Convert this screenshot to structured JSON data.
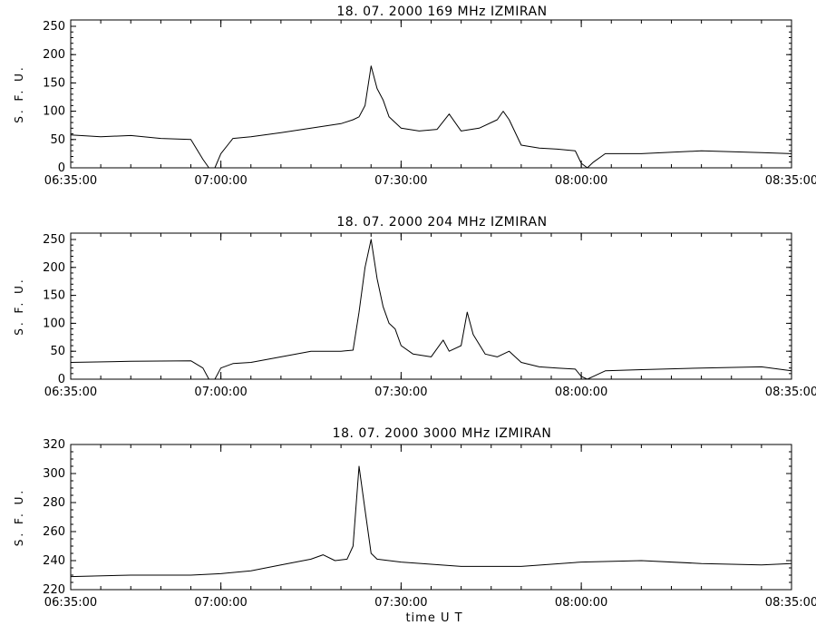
{
  "xlabel": "time  U T",
  "chart_data": [
    {
      "type": "line",
      "title": "18.  07.  2000    169  MHz    IZMIRAN",
      "ylabel": "S. F. U.",
      "xlim": [
        "06:35:00",
        "08:35:00"
      ],
      "ylim": [
        0,
        250
      ],
      "x_ticks": [
        "06:35:00",
        "07:00:00",
        "07:30:00",
        "08:00:00",
        "08:35:00"
      ],
      "y_ticks": [
        0,
        50,
        100,
        150,
        200,
        250
      ],
      "series": [
        {
          "points": [
            [
              "06:35:00",
              58
            ],
            [
              "06:40:00",
              55
            ],
            [
              "06:45:00",
              57
            ],
            [
              "06:50:00",
              52
            ],
            [
              "06:55:00",
              50
            ],
            [
              "06:57:00",
              15
            ],
            [
              "06:58:00",
              0
            ],
            [
              "06:59:00",
              0
            ],
            [
              "07:00:00",
              25
            ],
            [
              "07:02:00",
              52
            ],
            [
              "07:05:00",
              55
            ],
            [
              "07:10:00",
              62
            ],
            [
              "07:15:00",
              70
            ],
            [
              "07:20:00",
              78
            ],
            [
              "07:22:00",
              85
            ],
            [
              "07:23:00",
              90
            ],
            [
              "07:24:00",
              110
            ],
            [
              "07:25:00",
              180
            ],
            [
              "07:26:00",
              140
            ],
            [
              "07:27:00",
              120
            ],
            [
              "07:28:00",
              90
            ],
            [
              "07:30:00",
              70
            ],
            [
              "07:33:00",
              65
            ],
            [
              "07:36:00",
              68
            ],
            [
              "07:38:00",
              95
            ],
            [
              "07:40:00",
              65
            ],
            [
              "07:43:00",
              70
            ],
            [
              "07:46:00",
              85
            ],
            [
              "07:47:00",
              100
            ],
            [
              "07:48:00",
              85
            ],
            [
              "07:50:00",
              40
            ],
            [
              "07:53:00",
              35
            ],
            [
              "07:56:00",
              33
            ],
            [
              "07:59:00",
              30
            ],
            [
              "08:00:00",
              8
            ],
            [
              "08:01:00",
              0
            ],
            [
              "08:02:00",
              10
            ],
            [
              "08:04:00",
              25
            ],
            [
              "08:10:00",
              25
            ],
            [
              "08:20:00",
              30
            ],
            [
              "08:30:00",
              27
            ],
            [
              "08:35:00",
              25
            ]
          ]
        }
      ]
    },
    {
      "type": "line",
      "title": "18.  07.  2000    204  MHz    IZMIRAN",
      "ylabel": "S. F. U.",
      "xlim": [
        "06:35:00",
        "08:35:00"
      ],
      "ylim": [
        0,
        250
      ],
      "x_ticks": [
        "06:35:00",
        "07:00:00",
        "07:30:00",
        "08:00:00",
        "08:35:00"
      ],
      "y_ticks": [
        0,
        50,
        100,
        150,
        200,
        250
      ],
      "series": [
        {
          "points": [
            [
              "06:35:00",
              30
            ],
            [
              "06:45:00",
              32
            ],
            [
              "06:55:00",
              33
            ],
            [
              "06:57:00",
              20
            ],
            [
              "06:58:00",
              0
            ],
            [
              "06:59:00",
              0
            ],
            [
              "07:00:00",
              20
            ],
            [
              "07:02:00",
              28
            ],
            [
              "07:05:00",
              30
            ],
            [
              "07:10:00",
              40
            ],
            [
              "07:15:00",
              50
            ],
            [
              "07:20:00",
              50
            ],
            [
              "07:22:00",
              52
            ],
            [
              "07:23:00",
              120
            ],
            [
              "07:24:00",
              200
            ],
            [
              "07:25:00",
              250
            ],
            [
              "07:26:00",
              180
            ],
            [
              "07:27:00",
              130
            ],
            [
              "07:28:00",
              100
            ],
            [
              "07:29:00",
              90
            ],
            [
              "07:30:00",
              60
            ],
            [
              "07:32:00",
              45
            ],
            [
              "07:35:00",
              40
            ],
            [
              "07:37:00",
              70
            ],
            [
              "07:38:00",
              50
            ],
            [
              "07:40:00",
              60
            ],
            [
              "07:41:00",
              120
            ],
            [
              "07:42:00",
              80
            ],
            [
              "07:44:00",
              45
            ],
            [
              "07:46:00",
              40
            ],
            [
              "07:48:00",
              50
            ],
            [
              "07:50:00",
              30
            ],
            [
              "07:53:00",
              22
            ],
            [
              "07:56:00",
              20
            ],
            [
              "07:59:00",
              18
            ],
            [
              "08:00:00",
              5
            ],
            [
              "08:01:00",
              0
            ],
            [
              "08:02:00",
              5
            ],
            [
              "08:04:00",
              15
            ],
            [
              "08:10:00",
              17
            ],
            [
              "08:20:00",
              20
            ],
            [
              "08:30:00",
              22
            ],
            [
              "08:35:00",
              15
            ]
          ]
        }
      ]
    },
    {
      "type": "line",
      "title": "18.  07.  2000    3000  MHz    IZMIRAN",
      "ylabel": "S. F. U.",
      "xlim": [
        "06:35:00",
        "08:35:00"
      ],
      "ylim": [
        220,
        320
      ],
      "x_ticks": [
        "06:35:00",
        "07:00:00",
        "07:30:00",
        "08:00:00",
        "08:35:00"
      ],
      "y_ticks": [
        220,
        240,
        260,
        280,
        300,
        320
      ],
      "series": [
        {
          "points": [
            [
              "06:35:00",
              229
            ],
            [
              "06:45:00",
              230
            ],
            [
              "06:55:00",
              230
            ],
            [
              "07:00:00",
              231
            ],
            [
              "07:05:00",
              233
            ],
            [
              "07:10:00",
              237
            ],
            [
              "07:15:00",
              241
            ],
            [
              "07:17:00",
              244
            ],
            [
              "07:19:00",
              240
            ],
            [
              "07:21:00",
              241
            ],
            [
              "07:22:00",
              250
            ],
            [
              "07:23:00",
              305
            ],
            [
              "07:24:00",
              275
            ],
            [
              "07:25:00",
              245
            ],
            [
              "07:26:00",
              241
            ],
            [
              "07:30:00",
              239
            ],
            [
              "07:40:00",
              236
            ],
            [
              "07:50:00",
              236
            ],
            [
              "08:00:00",
              239
            ],
            [
              "08:10:00",
              240
            ],
            [
              "08:20:00",
              238
            ],
            [
              "08:30:00",
              237
            ],
            [
              "08:35:00",
              238
            ]
          ]
        }
      ]
    }
  ]
}
